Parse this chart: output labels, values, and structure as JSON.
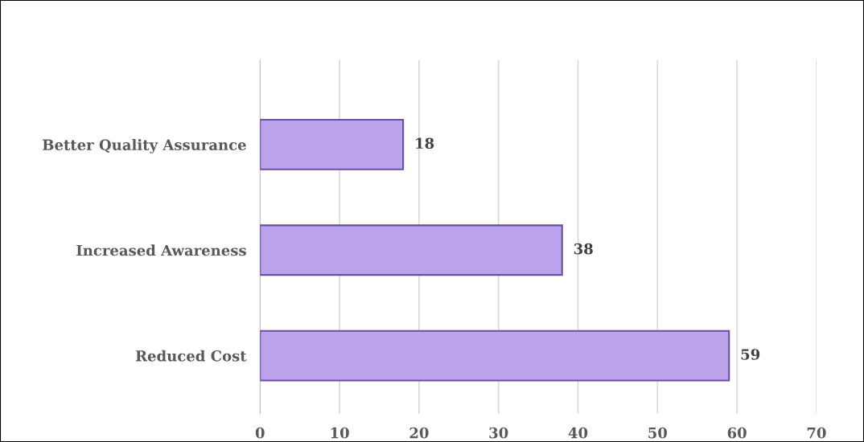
{
  "chart_data": {
    "type": "bar",
    "orientation": "horizontal",
    "categories": [
      "Better Quality Assurance",
      "Increased Awareness",
      "Reduced Cost"
    ],
    "values": [
      18,
      38,
      59
    ],
    "color": "#bba3ec",
    "xlim": [
      0,
      70
    ],
    "xticks": [
      0,
      10,
      20,
      30,
      40,
      50,
      60,
      70
    ],
    "grid": "x",
    "data_labels": true
  }
}
